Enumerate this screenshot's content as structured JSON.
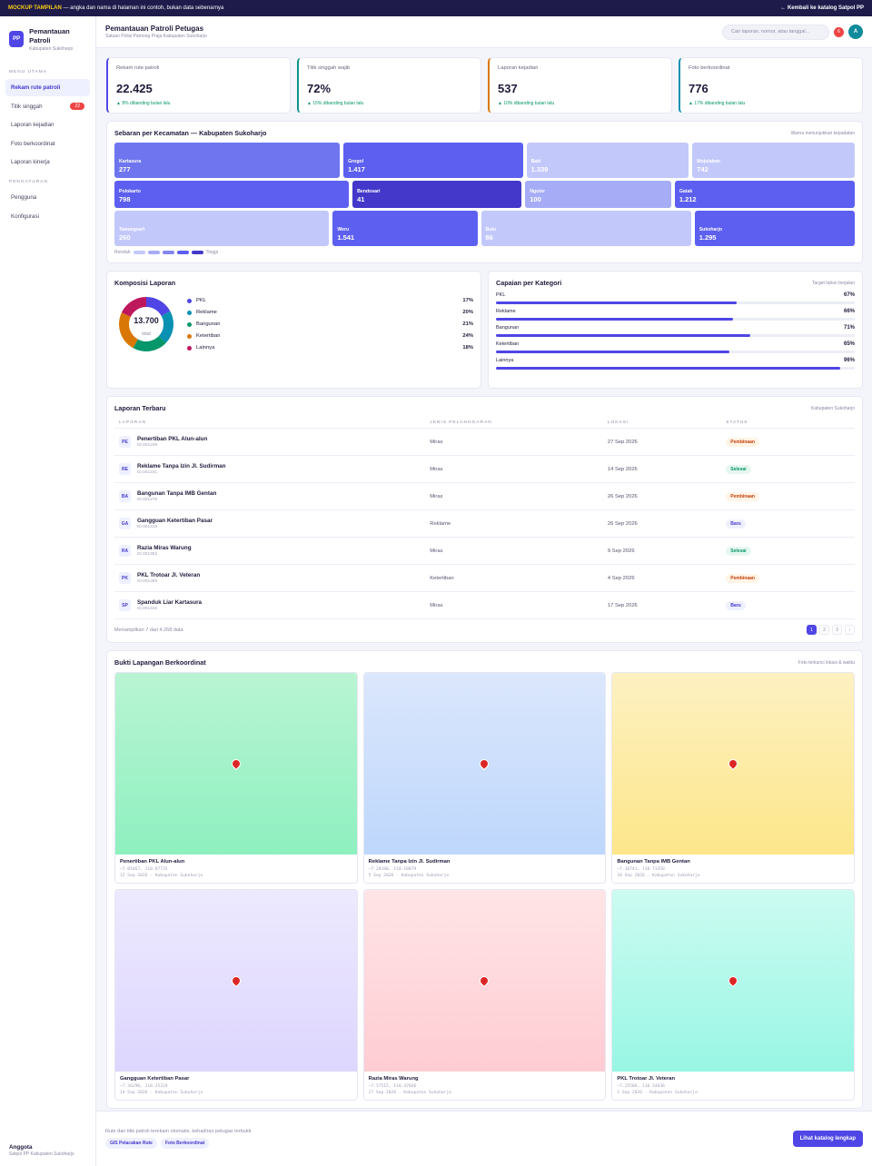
{
  "topbar": {
    "tag": "MOCKUP TAMPILAN",
    "note": " — angka dan nama di halaman ini contoh, bukan data sebenarnya",
    "back": "← Kembali ke katalog Satpol PP"
  },
  "brand": {
    "logo": "PP",
    "title": "Pemantauan Patroli",
    "sub": "Kabupaten Sukoharjo"
  },
  "sidebar": {
    "section1": "MENU UTAMA",
    "items": [
      {
        "label": "Rekam rute patroli"
      },
      {
        "label": "Titik singgah",
        "badge": "22"
      },
      {
        "label": "Laporan kejadian"
      },
      {
        "label": "Foto berkoordinat"
      },
      {
        "label": "Laporan kinerja"
      }
    ],
    "section2": "PENGATURAN",
    "items2": [
      {
        "label": "Pengguna"
      },
      {
        "label": "Konfigurasi"
      }
    ],
    "footer": {
      "role": "Anggota",
      "org": "Satpol PP Kabupaten Sukoharjo"
    }
  },
  "header": {
    "title": "Pemantauan Patroli Petugas",
    "subtitle": "Satuan Polisi Pamong Praja Kabupaten Sukoharjo",
    "search_placeholder": "Cari laporan, nomor, atau tanggal...",
    "notif": "6",
    "avatar": "A"
  },
  "kpis": [
    {
      "label": "Rekam rute patroli",
      "value": "22.425",
      "change": "▲ 8% dibanding bulan lalu",
      "color": "#4f46e5"
    },
    {
      "label": "Titik singgah wajib",
      "value": "72%",
      "change": "▲ 15% dibanding bulan lalu",
      "color": "#0d9488"
    },
    {
      "label": "Laporan kejadian",
      "value": "537",
      "change": "▲ 10% dibanding bulan lalu",
      "color": "#d97706"
    },
    {
      "label": "Foto berkoordinat",
      "value": "776",
      "change": "▲ 17% dibanding bulan lalu",
      "color": "#0891b2"
    }
  ],
  "treemap": {
    "title": "Sebaran per Kecamatan — Kabupaten Sukoharjo",
    "note": "Warna menunjukkan kepadatan",
    "rows": [
      [
        {
          "name": "Kartasura",
          "value": "277",
          "color": "#6f75ee",
          "flex": 1.27
        },
        {
          "name": "Grogol",
          "value": "1.417",
          "color": "#5c5ff0",
          "flex": 1
        },
        {
          "name": "Baki",
          "value": "1.339",
          "color": "#c3c8fb",
          "flex": 0.9
        },
        {
          "name": "Mojolaban",
          "value": "742",
          "color": "#c3c8fb",
          "flex": 0.9
        }
      ],
      [
        {
          "name": "Polokarto",
          "value": "798",
          "color": "#5c5ff0",
          "flex": 1.45
        },
        {
          "name": "Bendosari",
          "value": "41",
          "color": "#4338ca",
          "flex": 1.03
        },
        {
          "name": "Nguter",
          "value": "100",
          "color": "#a6acf6",
          "flex": 0.88
        },
        {
          "name": "Gatak",
          "value": "1.212",
          "color": "#5c5ff0",
          "flex": 1.1
        }
      ],
      [
        {
          "name": "Tawangsari",
          "value": "260",
          "color": "#c3c8fb",
          "flex": 1.32
        },
        {
          "name": "Weru",
          "value": "1.541",
          "color": "#5c5ff0",
          "flex": 0.87
        },
        {
          "name": "Bulu",
          "value": "86",
          "color": "#c3c8fb",
          "flex": 1.29
        },
        {
          "name": "Sukoharjo",
          "value": "1.295",
          "color": "#5c5ff0",
          "flex": 0.97
        }
      ]
    ],
    "legend_low": "Rendah",
    "legend_high": "Tinggi"
  },
  "composition": {
    "title": "Komposisi Laporan",
    "total": "13.700",
    "total_label": "total",
    "items": [
      {
        "label": "PKL",
        "pct": "17%",
        "value": 17,
        "color": "#4f46e5"
      },
      {
        "label": "Reklame",
        "pct": "20%",
        "value": 20,
        "color": "#0891b2"
      },
      {
        "label": "Bangunan",
        "pct": "21%",
        "value": 21,
        "color": "#059669"
      },
      {
        "label": "Ketertiban",
        "pct": "24%",
        "value": 24,
        "color": "#d97706"
      },
      {
        "label": "Lainnya",
        "pct": "18%",
        "value": 18,
        "color": "#be185d"
      }
    ]
  },
  "achievement": {
    "title": "Capaian per Kategori",
    "note": "Target tahun berjalan",
    "items": [
      {
        "label": "PKL",
        "pct": "67%",
        "value": 0.67
      },
      {
        "label": "Reklame",
        "pct": "66%",
        "value": 0.66
      },
      {
        "label": "Bangunan",
        "pct": "71%",
        "value": 0.71
      },
      {
        "label": "Ketertiban",
        "pct": "65%",
        "value": 0.65
      },
      {
        "label": "Lainnya",
        "pct": "96%",
        "value": 0.96
      }
    ]
  },
  "reports": {
    "title": "Laporan Terbaru",
    "note": "Kabupaten Sukoharjo",
    "columns": [
      "LAPORAN",
      "JENIS PELANGGARAN",
      "LOKASI",
      "STATUS"
    ],
    "rows": [
      {
        "ini": "PE",
        "title": "Penertiban PKL Alun-alun",
        "id": "ID.001206",
        "type": "Miras",
        "date": "27 Sep 2026",
        "status": "Pembinaan",
        "cls": "b-pemb"
      },
      {
        "ini": "RE",
        "title": "Reklame Tanpa Izin Jl. Sudirman",
        "id": "ID.001241",
        "type": "Miras",
        "date": "14 Sep 2026",
        "status": "Selesai",
        "cls": "b-sel"
      },
      {
        "ini": "BA",
        "title": "Bangunan Tanpa IMB Gentan",
        "id": "ID.001278",
        "type": "Miras",
        "date": "26 Sep 2026",
        "status": "Pembinaan",
        "cls": "b-pemb"
      },
      {
        "ini": "GA",
        "title": "Gangguan Ketertiban Pasar",
        "id": "ID.001315",
        "type": "Reklame",
        "date": "26 Sep 2026",
        "status": "Baru",
        "cls": "b-baru"
      },
      {
        "ini": "RA",
        "title": "Razia Miras Warung",
        "id": "ID.001352",
        "type": "Miras",
        "date": "9 Sep 2026",
        "status": "Selesai",
        "cls": "b-sel"
      },
      {
        "ini": "PK",
        "title": "PKL Trotoar Jl. Veteran",
        "id": "ID.001389",
        "type": "Ketertiban",
        "date": "4 Sep 2026",
        "status": "Pembinaan",
        "cls": "b-pemb"
      },
      {
        "ini": "SP",
        "title": "Spanduk Liar Kartasura",
        "id": "ID.001426",
        "type": "Miras",
        "date": "17 Sep 2026",
        "status": "Baru",
        "cls": "b-baru"
      }
    ],
    "summary": "Menampilkan 7 dari 4.268 data",
    "pages": [
      "1",
      "2",
      "3",
      "›"
    ]
  },
  "evidence": {
    "title": "Bukti Lapangan Berkoordinat",
    "note": "Foto terkunci lokasi & waktu",
    "photos": [
      {
        "title": "Penertiban PKL Alun-alun",
        "coord": "−7.05467, 110.87725",
        "meta": "13 Sep 2026 · Kabupaten Sukoharjo",
        "from": "#b9f4d3",
        "to": "#8ef0bf"
      },
      {
        "title": "Reklame Tanpa Izin Jl. Sudirman",
        "coord": "−7.28100, 110.18879",
        "meta": "5 Sep 2026 · Kabupaten Sukoharjo",
        "from": "#dbe7fc",
        "to": "#bed7fc"
      },
      {
        "title": "Bangunan Tanpa IMB Gentan",
        "coord": "−7.10741, 110.73358",
        "meta": "18 Sep 2026 · Kabupaten Sukoharjo",
        "from": "#fdf1c2",
        "to": "#fde68a"
      },
      {
        "title": "Gangguan Ketertiban Pasar",
        "coord": "−7.36290, 110.25224",
        "meta": "14 Sep 2026 · Kabupaten Sukoharjo",
        "from": "#ede9fe",
        "to": "#ddd6fe"
      },
      {
        "title": "Razia Miras Warung",
        "coord": "−7.57515, 110.47846",
        "meta": "27 Sep 2026 · Kabupaten Sukoharjo",
        "from": "#ffe4e6",
        "to": "#fecdd3"
      },
      {
        "title": "PKL Trotoar Jl. Veteran",
        "coord": "−7.25506, 110.54836",
        "meta": "1 Sep 2026 · Kabupaten Sukoharjo",
        "from": "#ccfbf1",
        "to": "#99f6e4"
      }
    ]
  },
  "footer": {
    "note": "Rute dan titik patroli terekam otomatis, kehadiran petugas terbukti.",
    "chips": [
      "GIS Pelacakan Rute",
      "Foto Berkoordinat"
    ],
    "cta": "Lihat katalog lengkap"
  }
}
